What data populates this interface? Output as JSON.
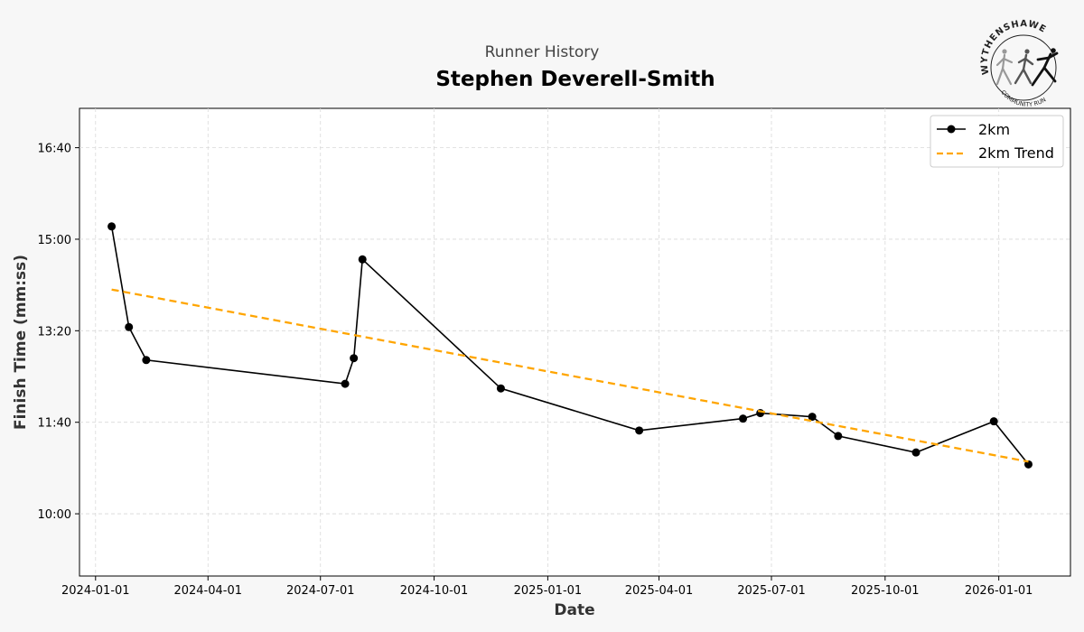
{
  "header": {
    "subtitle": "Runner History",
    "title": "Stephen Deverell-Smith"
  },
  "logo": {
    "top_text": "WYTHENSHAWE",
    "bottom_text": "COMMUNITY RUN",
    "icon": "running-figures-icon"
  },
  "chart_data": {
    "type": "line",
    "title": "Stephen Deverell-Smith",
    "subtitle": "Runner History",
    "xlabel": "Date",
    "ylabel": "Finish Time (mm:ss)",
    "xlim": [
      "2023-12-19",
      "2026-02-28"
    ],
    "ylim_seconds": [
      532,
      1043
    ],
    "x_ticks": [
      "2024-01-01",
      "2024-04-01",
      "2024-07-01",
      "2024-10-01",
      "2025-01-01",
      "2025-04-01",
      "2025-07-01",
      "2025-10-01",
      "2026-01-01"
    ],
    "y_ticks": [
      {
        "seconds": 600,
        "label": "10:00"
      },
      {
        "seconds": 700,
        "label": "11:40"
      },
      {
        "seconds": 800,
        "label": "13:20"
      },
      {
        "seconds": 900,
        "label": "15:00"
      },
      {
        "seconds": 1000,
        "label": "16:40"
      }
    ],
    "grid": true,
    "legend_position": "top-right",
    "series": [
      {
        "name": "2km",
        "style": "solid-line-with-markers",
        "color": "#000000",
        "points": [
          {
            "date": "2024-01-14",
            "time": "15:14"
          },
          {
            "date": "2024-01-28",
            "time": "13:24"
          },
          {
            "date": "2024-02-11",
            "time": "12:48"
          },
          {
            "date": "2024-07-21",
            "time": "12:22"
          },
          {
            "date": "2024-07-28",
            "time": "12:50"
          },
          {
            "date": "2024-08-04",
            "time": "14:38"
          },
          {
            "date": "2024-11-24",
            "time": "12:17"
          },
          {
            "date": "2025-03-16",
            "time": "11:31"
          },
          {
            "date": "2025-06-08",
            "time": "11:44"
          },
          {
            "date": "2025-06-22",
            "time": "11:50"
          },
          {
            "date": "2025-08-03",
            "time": "11:46"
          },
          {
            "date": "2025-08-24",
            "time": "11:25"
          },
          {
            "date": "2025-10-26",
            "time": "11:07"
          },
          {
            "date": "2025-12-28",
            "time": "11:41"
          },
          {
            "date": "2026-01-25",
            "time": "10:54"
          }
        ]
      },
      {
        "name": "2km Trend",
        "style": "dashed-line",
        "color": "#ffa500",
        "points": [
          {
            "date": "2024-01-14",
            "time": "14:05"
          },
          {
            "date": "2026-01-25",
            "time": "10:57"
          }
        ]
      }
    ]
  }
}
